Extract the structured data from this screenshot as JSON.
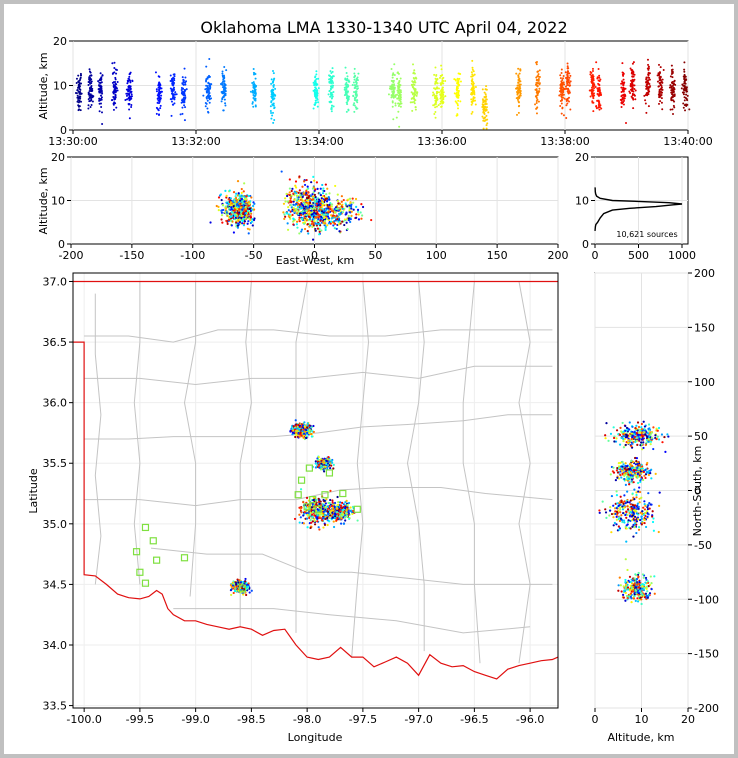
{
  "chart_data": [
    {
      "type": "scatter",
      "title": "Oklahoma LMA 1330-1340 UTC April 04, 2022",
      "xlabel": "",
      "ylabel": "Altitude, km",
      "x_ticks": [
        "13:30:00",
        "13:32:00",
        "13:34:00",
        "13:36:00",
        "13:38:00",
        "13:40:00"
      ],
      "x_range_minutes": [
        0,
        10
      ],
      "ylim": [
        0,
        20
      ],
      "y_ticks": [
        0,
        10,
        20
      ],
      "color_encoding": "time (blue to red)",
      "strokes": [
        {
          "t_min": 0.1,
          "alt": 9
        },
        {
          "t_min": 0.28,
          "alt": 9
        },
        {
          "t_min": 0.45,
          "alt": 9
        },
        {
          "t_min": 0.68,
          "alt": 9
        },
        {
          "t_min": 0.92,
          "alt": 9
        },
        {
          "t_min": 1.4,
          "alt": 8
        },
        {
          "t_min": 1.62,
          "alt": 9
        },
        {
          "t_min": 1.8,
          "alt": 8.5
        },
        {
          "t_min": 2.2,
          "alt": 9
        },
        {
          "t_min": 2.45,
          "alt": 9
        },
        {
          "t_min": 2.95,
          "alt": 9
        },
        {
          "t_min": 3.25,
          "alt": 8
        },
        {
          "t_min": 3.95,
          "alt": 8
        },
        {
          "t_min": 4.2,
          "alt": 9
        },
        {
          "t_min": 4.45,
          "alt": 9
        },
        {
          "t_min": 4.6,
          "alt": 9
        },
        {
          "t_min": 5.2,
          "alt": 9
        },
        {
          "t_min": 5.3,
          "alt": 9
        },
        {
          "t_min": 5.55,
          "alt": 9
        },
        {
          "t_min": 5.9,
          "alt": 8
        },
        {
          "t_min": 6.0,
          "alt": 8.5
        },
        {
          "t_min": 6.25,
          "alt": 9
        },
        {
          "t_min": 6.5,
          "alt": 9
        },
        {
          "t_min": 6.7,
          "alt": 5
        },
        {
          "t_min": 7.25,
          "alt": 9
        },
        {
          "t_min": 7.55,
          "alt": 9
        },
        {
          "t_min": 7.95,
          "alt": 9
        },
        {
          "t_min": 8.05,
          "alt": 10
        },
        {
          "t_min": 8.45,
          "alt": 10
        },
        {
          "t_min": 8.55,
          "alt": 9
        },
        {
          "t_min": 8.95,
          "alt": 9
        },
        {
          "t_min": 9.1,
          "alt": 10
        },
        {
          "t_min": 9.35,
          "alt": 10
        },
        {
          "t_min": 9.55,
          "alt": 10
        },
        {
          "t_min": 9.75,
          "alt": 9
        },
        {
          "t_min": 9.95,
          "alt": 9
        }
      ]
    },
    {
      "type": "scatter",
      "title": "",
      "xlabel": "East-West, km",
      "ylabel": "Altitude, km",
      "xlim": [
        -200,
        200
      ],
      "x_ticks": [
        -200,
        -150,
        -100,
        -50,
        0,
        50,
        100,
        150,
        200
      ],
      "ylim": [
        0,
        20
      ],
      "y_ticks": [
        0,
        10,
        20
      ],
      "clusters": [
        {
          "x": -65,
          "alt": 8,
          "x_spread": 10,
          "alt_spread": 3
        },
        {
          "x": -58,
          "alt": 8,
          "x_spread": 6,
          "alt_spread": 3
        },
        {
          "x": -10,
          "alt": 9,
          "x_spread": 12,
          "alt_spread": 4
        },
        {
          "x": 0,
          "alt": 8,
          "x_spread": 15,
          "alt_spread": 4
        },
        {
          "x": 15,
          "alt": 7,
          "x_spread": 18,
          "alt_spread": 3
        }
      ]
    },
    {
      "type": "line",
      "title": "",
      "xlabel": "",
      "ylabel": "",
      "xlim": [
        0,
        1000
      ],
      "x_ticks": [
        0,
        500,
        1000
      ],
      "ylim": [
        0,
        20
      ],
      "y_ticks": [
        0,
        10,
        20
      ],
      "annotation": "10,621 sources",
      "points": [
        [
          0,
          3
        ],
        [
          5,
          4
        ],
        [
          10,
          4.5
        ],
        [
          30,
          5
        ],
        [
          60,
          6
        ],
        [
          100,
          7
        ],
        [
          200,
          7.8
        ],
        [
          400,
          8.2
        ],
        [
          700,
          8.6
        ],
        [
          900,
          9
        ],
        [
          1000,
          9.2
        ],
        [
          850,
          9.5
        ],
        [
          500,
          9.8
        ],
        [
          200,
          10
        ],
        [
          60,
          10.5
        ],
        [
          20,
          11
        ],
        [
          8,
          11.5
        ],
        [
          3,
          12
        ],
        [
          1,
          13
        ]
      ]
    },
    {
      "type": "scatter",
      "title": "",
      "xlabel": "Longitude",
      "ylabel": "Latitude",
      "xlim": [
        -100.1,
        -95.75
      ],
      "x_ticks": [
        "-100.0",
        "-99.5",
        "-99.0",
        "-98.5",
        "-98.0",
        "-97.5",
        "-97.0",
        "-96.5",
        "-96.0"
      ],
      "ylim": [
        33.48,
        37.07
      ],
      "y_ticks": [
        "33.5",
        "34.0",
        "34.5",
        "35.0",
        "35.5",
        "36.0",
        "36.5",
        "37.0"
      ],
      "clusters": [
        {
          "lon": -98.05,
          "lat": 35.77,
          "spread": 0.07
        },
        {
          "lon": -97.85,
          "lat": 35.5,
          "spread": 0.05
        },
        {
          "lon": -97.9,
          "lat": 35.1,
          "spread": 0.13
        },
        {
          "lon": -97.7,
          "lat": 35.1,
          "spread": 0.08
        },
        {
          "lon": -98.6,
          "lat": 34.48,
          "spread": 0.06
        }
      ],
      "stations": [
        [
          -99.45,
          34.97
        ],
        [
          -99.38,
          34.86
        ],
        [
          -99.53,
          34.77
        ],
        [
          -99.35,
          34.7
        ],
        [
          -99.1,
          34.72
        ],
        [
          -99.5,
          34.6
        ],
        [
          -99.45,
          34.51
        ],
        [
          -97.98,
          35.46
        ],
        [
          -98.05,
          35.36
        ],
        [
          -98.08,
          35.24
        ],
        [
          -97.95,
          35.2
        ],
        [
          -97.84,
          35.24
        ],
        [
          -97.68,
          35.25
        ],
        [
          -97.55,
          35.12
        ],
        [
          -98.0,
          35.14
        ],
        [
          -97.9,
          35.12
        ],
        [
          -98.58,
          34.47
        ],
        [
          -97.8,
          35.42
        ]
      ]
    },
    {
      "type": "scatter",
      "title": "",
      "xlabel": "Altitude, km",
      "ylabel": "North-South, km",
      "xlim": [
        0,
        20
      ],
      "x_ticks": [
        0,
        10,
        20
      ],
      "ylim": [
        -200,
        200
      ],
      "y_ticks": [
        -200,
        -150,
        -100,
        -50,
        0,
        50,
        100,
        150,
        200
      ],
      "clusters": [
        {
          "alt": 9,
          "ns": 50,
          "alt_spread": 4,
          "ns_spread": 8
        },
        {
          "alt": 8,
          "ns": 18,
          "alt_spread": 3,
          "ns_spread": 8
        },
        {
          "alt": 8,
          "ns": -20,
          "alt_spread": 4,
          "ns_spread": 15
        },
        {
          "alt": 9,
          "ns": -90,
          "alt_spread": 2.5,
          "ns_spread": 9
        }
      ]
    }
  ]
}
